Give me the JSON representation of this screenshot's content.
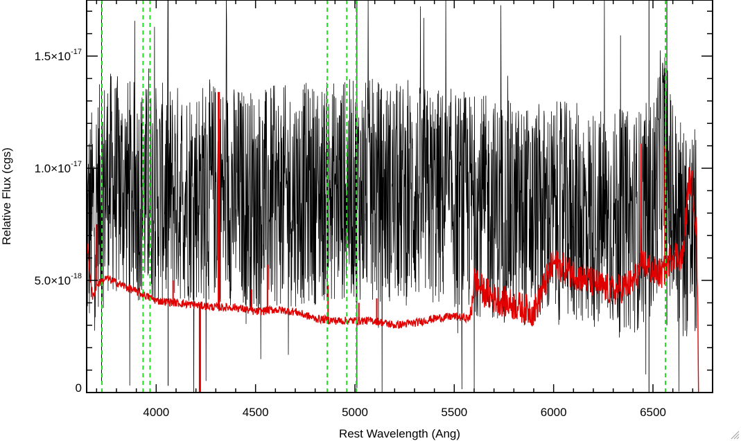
{
  "chart_data": {
    "type": "line",
    "xlabel": "Rest Wavelength (Ang)",
    "ylabel": "Relative Flux (cgs)",
    "xlim": [
      3650,
      6800
    ],
    "ylim": [
      0,
      1.75e-17
    ],
    "x_ticks": [
      {
        "value": 4000,
        "label": "4000"
      },
      {
        "value": 4500,
        "label": "4500"
      },
      {
        "value": 5000,
        "label": "5000"
      },
      {
        "value": 5500,
        "label": "5500"
      },
      {
        "value": 6000,
        "label": "6000"
      },
      {
        "value": 6500,
        "label": "6500"
      }
    ],
    "y_ticks": [
      {
        "value": 0,
        "mantissa": "0",
        "exponent": ""
      },
      {
        "value": 5e-18,
        "mantissa": "5.0×10",
        "exponent": "-18"
      },
      {
        "value": 1e-17,
        "mantissa": "1.0×10",
        "exponent": "-17"
      },
      {
        "value": 1.5e-17,
        "mantissa": "1.5×10",
        "exponent": "-17"
      }
    ],
    "emission_line_markers": [
      3727,
      3934,
      3969,
      4861,
      4959,
      5007,
      6563
    ],
    "series": [
      {
        "color": "#000000",
        "style": "noisy observed spectrum",
        "x": [
          3650,
          3700,
          3750,
          3800,
          3900,
          4000,
          4100,
          4200,
          4300,
          4400,
          4500,
          4600,
          4700,
          4800,
          4900,
          5000,
          5100,
          5200,
          5300,
          5400,
          5500,
          5600,
          5700,
          5800,
          5900,
          6000,
          6100,
          6200,
          6300,
          6400,
          6500,
          6550,
          6600,
          6650,
          6700,
          6720
        ],
        "y": [
          7e-18,
          8.5e-18,
          9.5e-18,
          9.2e-18,
          9e-18,
          8.8e-18,
          8.9e-18,
          9e-18,
          9e-18,
          8.8e-18,
          8.6e-18,
          8.7e-18,
          8.8e-18,
          8.9e-18,
          9e-18,
          9e-18,
          9e-18,
          8.9e-18,
          8.8e-18,
          8.7e-18,
          8.6e-18,
          8.4e-18,
          8.2e-18,
          8e-18,
          7.9e-18,
          8e-18,
          8e-18,
          7.8e-18,
          7.7e-18,
          7.6e-18,
          8.2e-18,
          1.1e-17,
          8e-18,
          7.5e-18,
          7e-18,
          6.8e-18
        ],
        "noise_amplitude": 5e-18
      },
      {
        "color": "#e00000",
        "style": "model / continuum spectrum",
        "x": [
          3650,
          3680,
          3700,
          3750,
          3800,
          3900,
          4000,
          4100,
          4200,
          4300,
          4400,
          4500,
          4600,
          4700,
          4800,
          4900,
          5000,
          5100,
          5200,
          5300,
          5400,
          5500,
          5580,
          5600,
          5650,
          5700,
          5800,
          5900,
          6000,
          6100,
          6200,
          6300,
          6400,
          6450,
          6500,
          6550,
          6600,
          6650,
          6680,
          6700,
          6720,
          6730
        ],
        "y": [
          6.8e-18,
          4.2e-18,
          4.8e-18,
          5.1e-18,
          4.9e-18,
          4.5e-18,
          4.1e-18,
          4e-18,
          3.9e-18,
          3.8e-18,
          3.8e-18,
          3.6e-18,
          3.7e-18,
          3.6e-18,
          3.3e-18,
          3.2e-18,
          3.2e-18,
          3.2e-18,
          3e-18,
          3.1e-18,
          3.3e-18,
          3.4e-18,
          3.3e-18,
          5e-18,
          4.5e-18,
          4.2e-18,
          3.9e-18,
          3.6e-18,
          5.8e-18,
          5.3e-18,
          4.9e-18,
          4.5e-18,
          4.9e-18,
          5.8e-18,
          5.4e-18,
          5.3e-18,
          6.2e-18,
          6e-18,
          9.5e-18,
          9.2e-18,
          7e-18,
          0
        ],
        "spikes": [
          {
            "x": 3700,
            "y": 7.5e-18
          },
          {
            "x": 4085,
            "y": 5e-18
          },
          {
            "x": 4220,
            "y": 0
          },
          {
            "x": 4315,
            "y": 1.34e-17
          },
          {
            "x": 4480,
            "y": 4.6e-18
          },
          {
            "x": 4560,
            "y": 5.7e-18
          },
          {
            "x": 4865,
            "y": 4.8e-18
          },
          {
            "x": 5020,
            "y": 4e-18
          },
          {
            "x": 5110,
            "y": 4.2e-18
          },
          {
            "x": 6440,
            "y": 1.11e-17
          },
          {
            "x": 6560,
            "y": 1.1e-17
          }
        ]
      }
    ],
    "grid": false
  },
  "ui": {
    "resize_grip_icon": "resize-grip-icon"
  }
}
